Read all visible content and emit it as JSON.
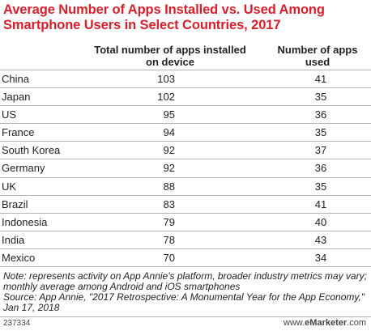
{
  "chart_data": {
    "type": "table",
    "title": "Average Number of Apps Installed vs. Used Among Smartphone Users in Select Countries, 2017",
    "columns": [
      "Total number of apps installed on device",
      "Number of apps used"
    ],
    "rows": [
      {
        "country": "China",
        "installed": 103,
        "used": 41
      },
      {
        "country": "Japan",
        "installed": 102,
        "used": 35
      },
      {
        "country": "US",
        "installed": 95,
        "used": 36
      },
      {
        "country": "France",
        "installed": 94,
        "used": 35
      },
      {
        "country": "South Korea",
        "installed": 92,
        "used": 37
      },
      {
        "country": "Germany",
        "installed": 92,
        "used": 36
      },
      {
        "country": "UK",
        "installed": 88,
        "used": 35
      },
      {
        "country": "Brazil",
        "installed": 83,
        "used": 41
      },
      {
        "country": "Indonesia",
        "installed": 79,
        "used": 40
      },
      {
        "country": "India",
        "installed": 78,
        "used": 43
      },
      {
        "country": "Mexico",
        "installed": 70,
        "used": 34
      }
    ],
    "note": "Note: represents activity on App Annie's platform, broader industry metrics may vary; monthly average among Android and iOS smartphones",
    "source": "Source: App Annie, \"2017 Retrospective: A Monumental Year for the App Economy,\" Jan 17, 2018"
  },
  "footer": {
    "chart_id": "237334",
    "brand_prefix": "www.",
    "brand_e": "e",
    "brand_marketer": "Marketer",
    "brand_suffix": ".com"
  }
}
